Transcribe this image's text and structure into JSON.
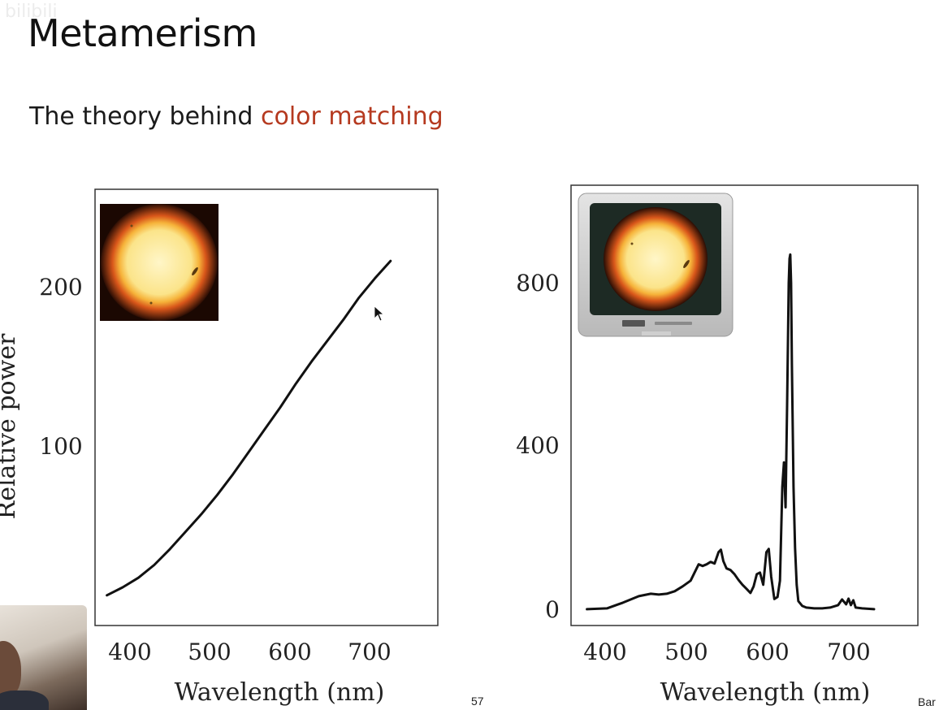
{
  "slide": {
    "title": "Metamerism",
    "subtitle_prefix": "The theory behind ",
    "subtitle_highlight": "color matching",
    "page_number": "57",
    "corner_text": "Bar",
    "watermark": "bilibili"
  },
  "colors": {
    "accent": "#b5391f",
    "line": "#111111",
    "frame": "#333333"
  },
  "chart_data": [
    {
      "type": "line",
      "inset_image": "sun-image",
      "xlabel": "Wavelength (nm)",
      "ylabel": "Relative power",
      "xlim": [
        355,
        790
      ],
      "ylim": [
        -12,
        262
      ],
      "xticks": [
        "400",
        "500",
        "600",
        "700"
      ],
      "yticks": [
        "100",
        "200"
      ],
      "series": [
        {
          "x": [
            370,
            390,
            410,
            430,
            450,
            470,
            490,
            510,
            530,
            550,
            570,
            590,
            610,
            630,
            650,
            670,
            690,
            710,
            730
          ],
          "y": [
            7,
            12,
            18,
            26,
            36,
            47,
            58,
            70,
            83,
            97,
            111,
            125,
            140,
            154,
            167,
            180,
            194,
            206,
            217
          ]
        }
      ]
    },
    {
      "type": "line",
      "inset_image": "tv-sun-image",
      "xlabel": "Wavelength (nm)",
      "xlim": [
        355,
        790
      ],
      "ylim": [
        -40,
        1040
      ],
      "xticks": [
        "400",
        "500",
        "600",
        "700"
      ],
      "yticks": [
        "0",
        "400",
        "800"
      ],
      "series": [
        {
          "x": [
            375,
            400,
            420,
            440,
            455,
            465,
            475,
            485,
            495,
            505,
            510,
            515,
            520,
            525,
            530,
            535,
            540,
            543,
            546,
            550,
            555,
            560,
            565,
            570,
            575,
            580,
            584,
            588,
            592,
            596,
            600,
            603,
            606,
            610,
            614,
            617,
            620,
            622,
            624,
            626,
            628,
            629,
            630,
            631,
            632,
            634,
            636,
            638,
            640,
            645,
            650,
            660,
            670,
            680,
            690,
            695,
            700,
            703,
            706,
            709,
            712,
            720,
            735
          ],
          "y": [
            0,
            2,
            16,
            32,
            38,
            36,
            38,
            44,
            56,
            70,
            90,
            110,
            106,
            110,
            116,
            112,
            140,
            146,
            118,
            100,
            96,
            86,
            72,
            60,
            50,
            40,
            56,
            86,
            90,
            60,
            140,
            148,
            80,
            25,
            30,
            70,
            300,
            360,
            250,
            500,
            800,
            860,
            870,
            800,
            600,
            300,
            150,
            60,
            20,
            8,
            4,
            2,
            2,
            4,
            10,
            24,
            12,
            26,
            10,
            22,
            4,
            2,
            0
          ]
        }
      ]
    }
  ]
}
